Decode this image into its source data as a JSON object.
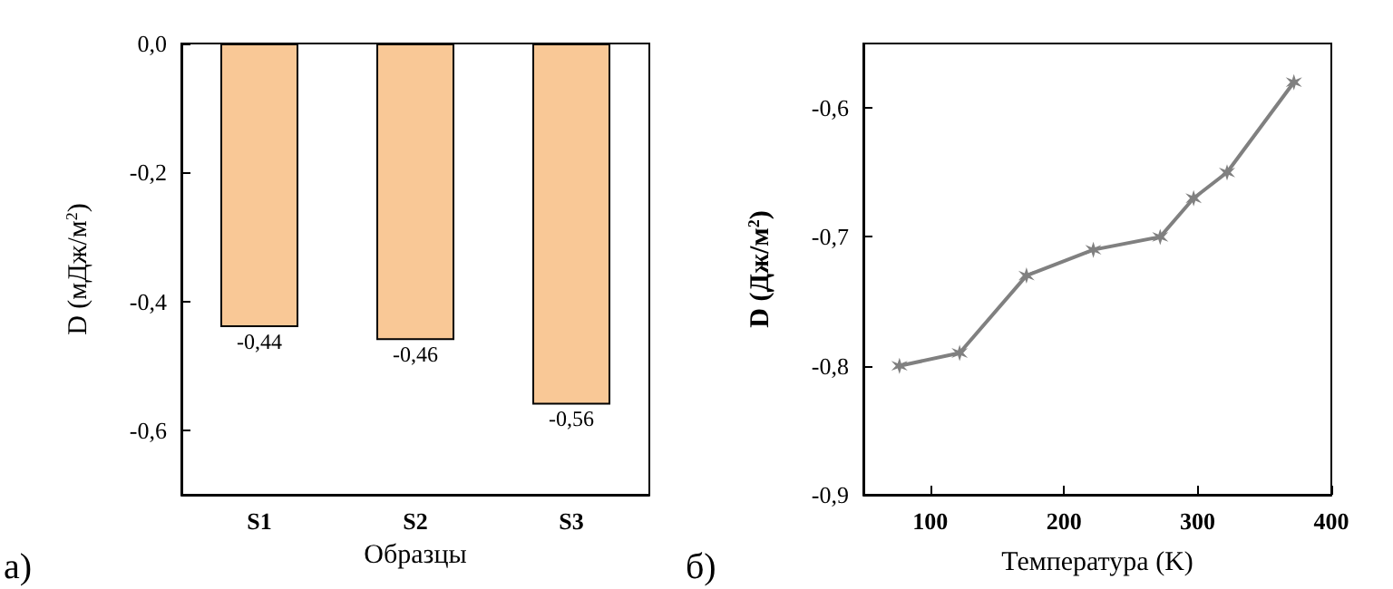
{
  "chart_data": [
    {
      "type": "bar",
      "categories": [
        "S1",
        "S2",
        "S3"
      ],
      "values": [
        -0.44,
        -0.46,
        -0.56
      ],
      "value_labels": [
        "-0,44",
        "-0,46",
        "-0,56"
      ],
      "color": "#f9c896",
      "xlabel": "Образцы",
      "ylabel": "D (мДж/м$^{2}$)",
      "ylim": [
        -0.7,
        0
      ],
      "yticks": [
        {
          "value": 0,
          "label": "0,0"
        },
        {
          "value": -0.2,
          "label": "-0,2"
        },
        {
          "value": -0.4,
          "label": "-0,4"
        },
        {
          "value": -0.6,
          "label": "-0,6"
        }
      ],
      "grid": false,
      "annotations": [
        "а)"
      ]
    },
    {
      "type": "line",
      "x": [
        77,
        122,
        172,
        222,
        272,
        297,
        322,
        372
      ],
      "values": [
        -0.8,
        -0.79,
        -0.73,
        -0.71,
        -0.7,
        -0.67,
        -0.65,
        -0.58
      ],
      "color": "#808080",
      "marker": "cross",
      "xlabel": "Температура (K)",
      "ylabel": "D (Дж/м$^{2}$)",
      "xlim": [
        50,
        400
      ],
      "xticks": [
        100,
        200,
        300,
        400
      ],
      "ylim": [
        -0.9,
        -0.55
      ],
      "yticks": [
        {
          "value": -0.6,
          "label": "-0,6"
        },
        {
          "value": -0.7,
          "label": "-0,7"
        },
        {
          "value": -0.8,
          "label": "-0,8"
        },
        {
          "value": -0.9,
          "label": "-0,9"
        }
      ],
      "grid": false,
      "annotations": [
        "б)"
      ]
    }
  ]
}
